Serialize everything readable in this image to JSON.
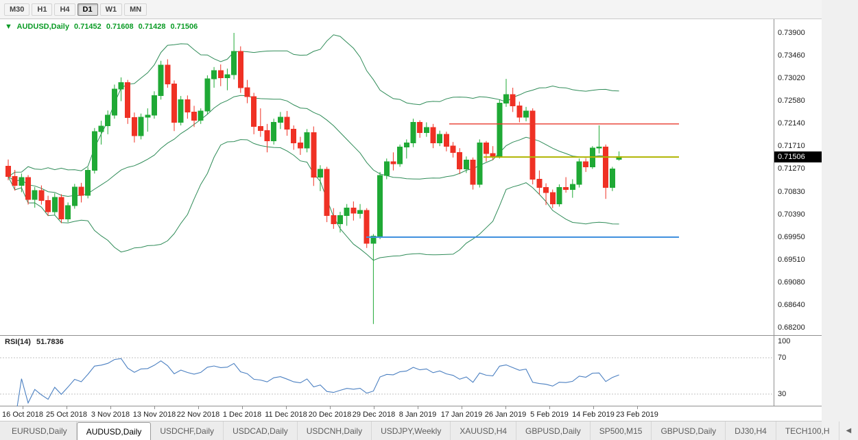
{
  "colors": {
    "candle_up": "#1fa935",
    "candle_down": "#ef3124",
    "bollinger": "#2e8b57",
    "rsi_line": "#4a7fc1",
    "rsi_level": "#c0c0c0",
    "header_text": "#0a9b25",
    "badge_bg": "#000000",
    "badge_text": "#ffffff"
  },
  "toolbar": {
    "timeframes": [
      {
        "label": "M30",
        "active": false
      },
      {
        "label": "H1",
        "active": false
      },
      {
        "label": "H4",
        "active": false
      },
      {
        "label": "D1",
        "active": true
      },
      {
        "label": "W1",
        "active": false
      },
      {
        "label": "MN",
        "active": false
      }
    ]
  },
  "chart_header": {
    "marker": "▼",
    "symbol": "AUDUSD,Daily",
    "open": "0.71452",
    "high": "0.71608",
    "low": "0.71428",
    "close": "0.71506"
  },
  "price_badge": "0.71506",
  "chart_data": {
    "type": "candlestick",
    "symbol": "AUDUSD",
    "period": "Daily",
    "title": "AUDUSD,Daily",
    "y_axis": {
      "max": 0.739,
      "min": 0.682,
      "labels": [
        "0.73900",
        "0.73460",
        "0.73020",
        "0.72580",
        "0.72140",
        "0.71710",
        "0.71270",
        "0.70830",
        "0.70390",
        "0.69950",
        "0.69510",
        "0.69080",
        "0.68640",
        "0.68200"
      ]
    },
    "x_axis": {
      "labels": [
        "16 Oct 2018",
        "25 Oct 2018",
        "3 Nov 2018",
        "13 Nov 2018",
        "22 Nov 2018",
        "1 Dec 2018",
        "11 Dec 2018",
        "20 Dec 2018",
        "29 Dec 2018",
        "8 Jan 2019",
        "17 Jan 2019",
        "26 Jan 2019",
        "5 Feb 2019",
        "14 Feb 2019",
        "23 Feb 2019"
      ]
    },
    "candles": [
      [
        0.7132,
        0.7145,
        0.7105,
        0.7112
      ],
      [
        0.7112,
        0.7125,
        0.7085,
        0.7095
      ],
      [
        0.7095,
        0.7118,
        0.7082,
        0.711
      ],
      [
        0.711,
        0.7115,
        0.7058,
        0.7068
      ],
      [
        0.7068,
        0.7092,
        0.7052,
        0.7085
      ],
      [
        0.7085,
        0.7095,
        0.7058,
        0.7066
      ],
      [
        0.7066,
        0.7075,
        0.7036,
        0.7044
      ],
      [
        0.7044,
        0.708,
        0.7038,
        0.7072
      ],
      [
        0.7072,
        0.7078,
        0.7022,
        0.703
      ],
      [
        0.703,
        0.7062,
        0.7024,
        0.7056
      ],
      [
        0.7056,
        0.7098,
        0.705,
        0.7092
      ],
      [
        0.7092,
        0.71,
        0.7062,
        0.7076
      ],
      [
        0.7076,
        0.713,
        0.707,
        0.7124
      ],
      [
        0.7124,
        0.7206,
        0.7118,
        0.7199
      ],
      [
        0.7199,
        0.722,
        0.7174,
        0.721
      ],
      [
        0.721,
        0.724,
        0.7194,
        0.7231
      ],
      [
        0.7231,
        0.729,
        0.7224,
        0.7281
      ],
      [
        0.7281,
        0.7304,
        0.7258,
        0.7294
      ],
      [
        0.7294,
        0.7299,
        0.7214,
        0.7226
      ],
      [
        0.7226,
        0.7236,
        0.7178,
        0.7191
      ],
      [
        0.7191,
        0.7234,
        0.7184,
        0.7227
      ],
      [
        0.7227,
        0.7244,
        0.7199,
        0.7231
      ],
      [
        0.7231,
        0.7277,
        0.7224,
        0.7269
      ],
      [
        0.7269,
        0.7336,
        0.7261,
        0.7328
      ],
      [
        0.7328,
        0.7339,
        0.7284,
        0.7291
      ],
      [
        0.7291,
        0.7298,
        0.72,
        0.7217
      ],
      [
        0.7217,
        0.7268,
        0.7211,
        0.7261
      ],
      [
        0.7261,
        0.7269,
        0.7224,
        0.7237
      ],
      [
        0.7237,
        0.7249,
        0.7208,
        0.7221
      ],
      [
        0.7221,
        0.7244,
        0.7214,
        0.7239
      ],
      [
        0.7239,
        0.7308,
        0.7233,
        0.7301
      ],
      [
        0.7301,
        0.7324,
        0.7284,
        0.7317
      ],
      [
        0.7317,
        0.7329,
        0.7287,
        0.7303
      ],
      [
        0.7303,
        0.7321,
        0.7279,
        0.7309
      ],
      [
        0.7309,
        0.739,
        0.73,
        0.7354
      ],
      [
        0.7354,
        0.7364,
        0.7274,
        0.7284
      ],
      [
        0.7284,
        0.7299,
        0.7254,
        0.7267
      ],
      [
        0.7267,
        0.7274,
        0.7194,
        0.7209
      ],
      [
        0.7209,
        0.7244,
        0.7189,
        0.7201
      ],
      [
        0.7201,
        0.7214,
        0.7159,
        0.7181
      ],
      [
        0.7181,
        0.7224,
        0.7174,
        0.7217
      ],
      [
        0.7217,
        0.7237,
        0.7204,
        0.7227
      ],
      [
        0.7227,
        0.7239,
        0.7191,
        0.7204
      ],
      [
        0.7204,
        0.7211,
        0.7164,
        0.7177
      ],
      [
        0.7177,
        0.7189,
        0.7154,
        0.7167
      ],
      [
        0.7167,
        0.7204,
        0.7159,
        0.7197
      ],
      [
        0.7197,
        0.7209,
        0.7094,
        0.7111
      ],
      [
        0.7111,
        0.7134,
        0.7084,
        0.7126
      ],
      [
        0.7126,
        0.7131,
        0.7024,
        0.7037
      ],
      [
        0.7037,
        0.7051,
        0.7011,
        0.7021
      ],
      [
        0.7021,
        0.7044,
        0.7004,
        0.7037
      ],
      [
        0.7037,
        0.7059,
        0.7017,
        0.7051
      ],
      [
        0.7051,
        0.7064,
        0.7027,
        0.7041
      ],
      [
        0.7041,
        0.7059,
        0.7031,
        0.7047
      ],
      [
        0.7047,
        0.7051,
        0.6974,
        0.6983
      ],
      [
        0.6983,
        0.7001,
        0.6827,
        0.6997
      ],
      [
        0.6997,
        0.7121,
        0.6991,
        0.7114
      ],
      [
        0.7114,
        0.7147,
        0.7107,
        0.7141
      ],
      [
        0.7141,
        0.7159,
        0.7124,
        0.7137
      ],
      [
        0.7137,
        0.7174,
        0.7131,
        0.7169
      ],
      [
        0.7169,
        0.7184,
        0.7147,
        0.7177
      ],
      [
        0.7177,
        0.7224,
        0.7169,
        0.7217
      ],
      [
        0.7217,
        0.7221,
        0.7187,
        0.7197
      ],
      [
        0.7197,
        0.7217,
        0.7189,
        0.7207
      ],
      [
        0.7207,
        0.7214,
        0.7167,
        0.7177
      ],
      [
        0.7177,
        0.7201,
        0.7171,
        0.7194
      ],
      [
        0.7194,
        0.7199,
        0.7161,
        0.7171
      ],
      [
        0.7171,
        0.7179,
        0.7149,
        0.7159
      ],
      [
        0.7159,
        0.7167,
        0.7117,
        0.7127
      ],
      [
        0.7127,
        0.7151,
        0.7119,
        0.7144
      ],
      [
        0.7144,
        0.7149,
        0.7087,
        0.7097
      ],
      [
        0.7097,
        0.7184,
        0.7091,
        0.7177
      ],
      [
        0.7177,
        0.7181,
        0.7141,
        0.7157
      ],
      [
        0.7157,
        0.7171,
        0.7144,
        0.7151
      ],
      [
        0.7151,
        0.7261,
        0.7147,
        0.7254
      ],
      [
        0.7254,
        0.7301,
        0.7247,
        0.7271
      ],
      [
        0.7271,
        0.7284,
        0.7237,
        0.7249
      ],
      [
        0.7249,
        0.7257,
        0.7217,
        0.7227
      ],
      [
        0.7227,
        0.7247,
        0.7219,
        0.7239
      ],
      [
        0.7239,
        0.7244,
        0.7097,
        0.7107
      ],
      [
        0.7107,
        0.7124,
        0.7077,
        0.7091
      ],
      [
        0.7091,
        0.7099,
        0.7057,
        0.7081
      ],
      [
        0.7081,
        0.7087,
        0.7051,
        0.7059
      ],
      [
        0.7059,
        0.7097,
        0.7054,
        0.7091
      ],
      [
        0.7091,
        0.7111,
        0.7081,
        0.7087
      ],
      [
        0.7087,
        0.7107,
        0.7071,
        0.7097
      ],
      [
        0.7097,
        0.7147,
        0.7091,
        0.7141
      ],
      [
        0.7141,
        0.7147,
        0.7121,
        0.7131
      ],
      [
        0.7131,
        0.7171,
        0.7127,
        0.7167
      ],
      [
        0.7167,
        0.7211,
        0.7157,
        0.7169
      ],
      [
        0.7169,
        0.7174,
        0.7069,
        0.7091
      ],
      [
        0.7091,
        0.7131,
        0.7084,
        0.7127
      ],
      [
        0.71452,
        0.71608,
        0.71428,
        0.71506
      ]
    ],
    "hlines": [
      {
        "name": "resistance-line",
        "price": 0.7214,
        "color": "#e8392d",
        "width": 1.4,
        "x1": 0.581,
        "x2": 0.878
      },
      {
        "name": "pivot-line",
        "price": 0.715,
        "color": "#b0b400",
        "width": 2,
        "x1": 0.625,
        "x2": 0.878
      },
      {
        "name": "support-line",
        "price": 0.6995,
        "color": "#3f8fde",
        "width": 2,
        "x1": 0.473,
        "x2": 0.878
      }
    ],
    "indicators": {
      "bollinger": {
        "period": 20,
        "deviation": 2
      },
      "rsi": {
        "label": "RSI(14)",
        "value": "51.7836",
        "period": 14,
        "levels": [
          70,
          30
        ],
        "scale_labels": [
          "100",
          "70",
          "30"
        ]
      }
    }
  },
  "tabs": {
    "scroll_arrow": "◀",
    "items": [
      {
        "label": "EURUSD,Daily",
        "active": false
      },
      {
        "label": "AUDUSD,Daily",
        "active": true
      },
      {
        "label": "USDCHF,Daily",
        "active": false
      },
      {
        "label": "USDCAD,Daily",
        "active": false
      },
      {
        "label": "USDCNH,Daily",
        "active": false
      },
      {
        "label": "USDJPY,Weekly",
        "active": false
      },
      {
        "label": "XAUUSD,H4",
        "active": false
      },
      {
        "label": "GBPUSD,Daily",
        "active": false
      },
      {
        "label": "SP500,M15",
        "active": false
      },
      {
        "label": "GBPUSD,Daily",
        "active": false
      },
      {
        "label": "DJ30,H4",
        "active": false
      },
      {
        "label": "TECH100,H",
        "active": false
      }
    ]
  }
}
